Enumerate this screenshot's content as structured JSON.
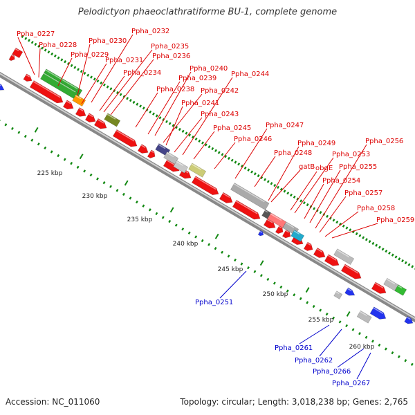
{
  "title": "Pelodictyon phaeoclathratiforme BU-1, complete genome",
  "footer": {
    "accession": "Accession: NC_011060",
    "summary": "Topology: circular; Length: 3,018,238 bp; Genes: 2,765"
  },
  "colors": {
    "forward_label": "#dd0000",
    "reverse_label": "#0000cc",
    "backbone": "#999999",
    "cds": "#ee1111",
    "ticks": "#118811",
    "other": [
      "#33aa33",
      "#ff9900",
      "#778822",
      "#444488",
      "#bbbbbb",
      "#cccc77",
      "#aaaaaa",
      "#ff7777",
      "#22aacc",
      "#2233ee"
    ]
  },
  "scale_labels": [
    "225 kbp",
    "230 kbp",
    "235 kbp",
    "240 kbp",
    "245 kbp",
    "250 kbp",
    "255 kbp",
    "260 kbp"
  ],
  "forward_labels": [
    "Ppha_0227",
    "Ppha_0228",
    "Ppha_0229",
    "Ppha_0230",
    "Ppha_0231",
    "Ppha_0232",
    "Ppha_0234",
    "Ppha_0235",
    "Ppha_0236",
    "Ppha_0238",
    "Ppha_0239",
    "Ppha_0240",
    "Ppha_0241",
    "Ppha_0242",
    "Ppha_0243",
    "Ppha_0244",
    "Ppha_0245",
    "Ppha_0246",
    "Ppha_0247",
    "Ppha_0248",
    "gatB",
    "Ppha_0249",
    "obgE",
    "Ppha_0253",
    "Ppha_0254",
    "Ppha_0255",
    "Ppha_0256",
    "Ppha_0257",
    "Ppha_0258",
    "Ppha_0259"
  ],
  "reverse_labels": [
    "Ppha_0251",
    "Ppha_0261",
    "Ppha_0262",
    "Ppha_0266",
    "Ppha_0267"
  ]
}
